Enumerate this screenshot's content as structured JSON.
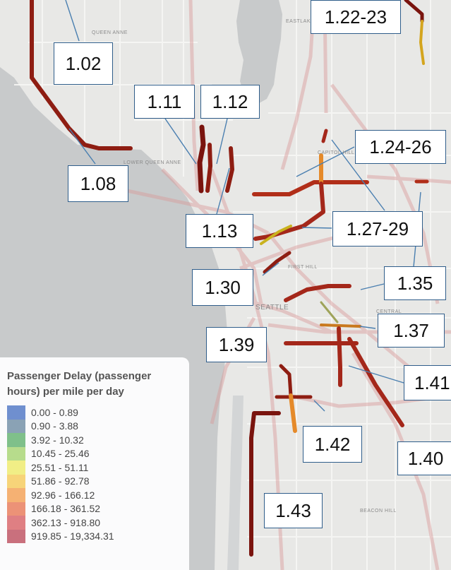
{
  "map": {
    "place_labels": {
      "queen_anne": "QUEEN ANNE",
      "eastlake": "EASTLAKE",
      "capitol_hill": "CAPITOL HILL",
      "first_hill": "FIRST HILL",
      "seattle": "SEATTLE",
      "central": "CENTRAL",
      "beacon_hill": "BEACON HILL",
      "lower_queen_anne": "LOWER QUEEN ANNE"
    }
  },
  "callouts": [
    {
      "id": "1.02",
      "label": "1.02"
    },
    {
      "id": "1.08",
      "label": "1.08"
    },
    {
      "id": "1.11",
      "label": "1.11"
    },
    {
      "id": "1.12",
      "label": "1.12"
    },
    {
      "id": "1.13",
      "label": "1.13"
    },
    {
      "id": "1.22-23",
      "label": "1.22-23"
    },
    {
      "id": "1.24-26",
      "label": "1.24-26"
    },
    {
      "id": "1.27-29",
      "label": "1.27-29"
    },
    {
      "id": "1.30",
      "label": "1.30"
    },
    {
      "id": "1.35",
      "label": "1.35"
    },
    {
      "id": "1.37",
      "label": "1.37"
    },
    {
      "id": "1.39",
      "label": "1.39"
    },
    {
      "id": "1.40",
      "label": "1.40"
    },
    {
      "id": "1.41",
      "label": "1.41"
    },
    {
      "id": "1.42",
      "label": "1.42"
    },
    {
      "id": "1.43",
      "label": "1.43"
    }
  ],
  "legend": {
    "title": "Passenger Delay (passenger hours) per mile per day",
    "items": [
      {
        "label": "0.00 - 0.89",
        "color": "#6f8fcf"
      },
      {
        "label": "0.90 - 3.88",
        "color": "#8aa2b5"
      },
      {
        "label": "3.92 - 10.32",
        "color": "#7fc08a"
      },
      {
        "label": "10.45 - 25.46",
        "color": "#b7dc8c"
      },
      {
        "label": "25.51 - 51.11",
        "color": "#f1ee86"
      },
      {
        "label": "51.86 - 92.78",
        "color": "#f7d479"
      },
      {
        "label": "92.96 - 166.12",
        "color": "#f5b173"
      },
      {
        "label": "166.18 - 361.52",
        "color": "#ec9277"
      },
      {
        "label": "362.13 - 918.80",
        "color": "#df7f83"
      },
      {
        "label": "919.85 - 19,334.31",
        "color": "#c9707d"
      }
    ]
  }
}
